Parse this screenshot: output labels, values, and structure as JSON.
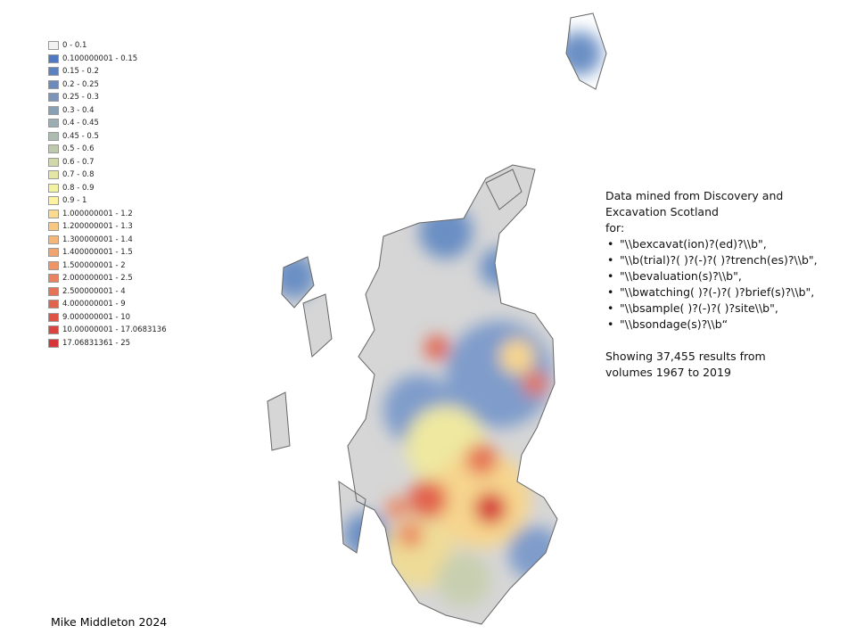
{
  "legend": {
    "items": [
      {
        "label": "0 - 0.1",
        "color": "#f2f2f2"
      },
      {
        "label": "0.100000001 - 0.15",
        "color": "#4f79c2"
      },
      {
        "label": "0.15 - 0.2",
        "color": "#5c82bf"
      },
      {
        "label": "0.2 - 0.25",
        "color": "#6b8bbb"
      },
      {
        "label": "0.25 - 0.3",
        "color": "#7b96b8"
      },
      {
        "label": "0.3 - 0.4",
        "color": "#8aa1b5"
      },
      {
        "label": "0.4 - 0.45",
        "color": "#9baeb3"
      },
      {
        "label": "0.45 - 0.5",
        "color": "#adbcb0"
      },
      {
        "label": "0.5 - 0.6",
        "color": "#bfcaac"
      },
      {
        "label": "0.6 - 0.7",
        "color": "#d2d9a8"
      },
      {
        "label": "0.7 - 0.8",
        "color": "#e3e6a4"
      },
      {
        "label": "0.8 - 0.9",
        "color": "#f3f2a0"
      },
      {
        "label": "0.9 - 1",
        "color": "#fdf2a0"
      },
      {
        "label": "1.000000001 - 1.2",
        "color": "#fbdb90"
      },
      {
        "label": "1.200000001 - 1.3",
        "color": "#f8c883"
      },
      {
        "label": "1.300000001 - 1.4",
        "color": "#f5b679"
      },
      {
        "label": "1.400000001 - 1.5",
        "color": "#f2a46f"
      },
      {
        "label": "1.500000001 - 2",
        "color": "#ee9466"
      },
      {
        "label": "2.000000001 - 2.5",
        "color": "#ea835d"
      },
      {
        "label": "2.500000001 - 4",
        "color": "#e67355"
      },
      {
        "label": "4.000000001 - 9",
        "color": "#e2634d"
      },
      {
        "label": "9.000000001 - 10",
        "color": "#de5346"
      },
      {
        "label": "10.00000001 - 17.0683136",
        "color": "#d9443f"
      },
      {
        "label": "17.06831361 - 25",
        "color": "#d53538"
      }
    ]
  },
  "info": {
    "heading": "Data mined from Discovery and Excavation Scotland",
    "for": "for:",
    "bullets": [
      "\"\\\\bexcavat(ion)?(ed)?\\\\b\",",
      "\"\\\\b(trial)?( )?(-)?( )?trench(es)?\\\\b\",",
      "\"\\\\bevaluation(s)?\\\\b\",",
      "\"\\\\bwatching( )?(-)?( )?brief(s)?\\\\b\",",
      "\"\\\\bsample( )?(-)?( )?site\\\\b\",",
      "\"\\\\bsondage(s)?\\\\b“"
    ],
    "summary": "Showing 37,455 results from volumes 1967 to 2019"
  },
  "credit": "Mike Middleton 2024"
}
